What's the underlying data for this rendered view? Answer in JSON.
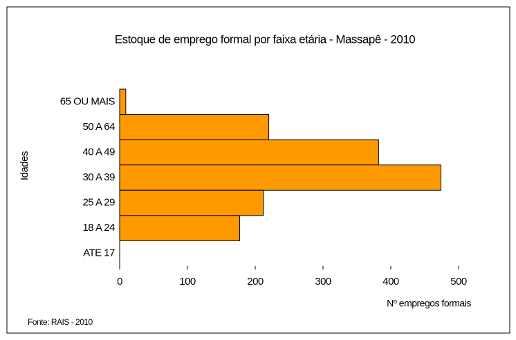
{
  "chart_data": {
    "type": "bar",
    "orientation": "horizontal",
    "title": "Estoque de emprego formal por faixa etária - Massapê - 2010",
    "x_label": "Nº empregos formais",
    "y_label": "Idades",
    "note": "Fonte: RAIS - 2010",
    "categories": [
      "65 OU MAIS",
      "50 A 64",
      "40 A 49",
      "30 A 39",
      "25 A 29",
      "18 A 24",
      "ATE 17"
    ],
    "values": [
      9,
      220,
      382,
      474,
      212,
      177,
      0
    ],
    "color": "#FF9900",
    "xlim": [
      0,
      500
    ],
    "xticks": [
      0,
      100,
      200,
      300,
      400,
      500
    ],
    "grid": false
  }
}
